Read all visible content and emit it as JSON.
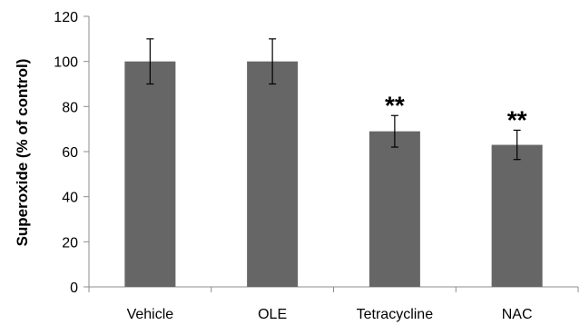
{
  "chart_data": {
    "type": "bar",
    "title": "",
    "xlabel": "",
    "ylabel": "Superoxide (% of  control)",
    "ylim": [
      0,
      120
    ],
    "yticks": [
      0,
      20,
      40,
      60,
      80,
      100,
      120
    ],
    "categories": [
      "Vehicle",
      "OLE",
      "Tetracycline",
      "NAC"
    ],
    "values": [
      100,
      100,
      69,
      63
    ],
    "errors": [
      10,
      10,
      7,
      6.5
    ],
    "significance": [
      "",
      "",
      "**",
      "**"
    ],
    "bar_color": "#666666",
    "grid": false,
    "legend": "none"
  }
}
